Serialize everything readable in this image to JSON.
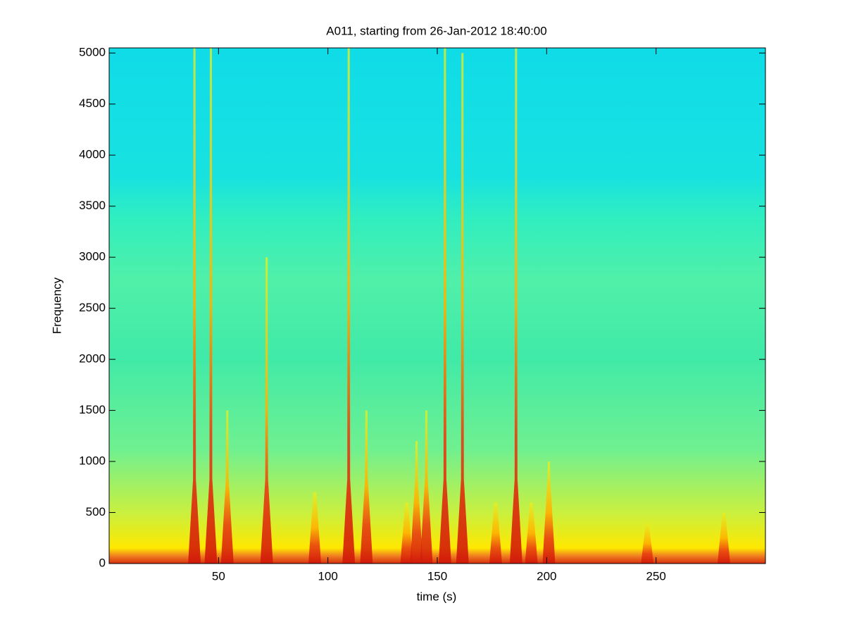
{
  "chart_data": {
    "type": "spectrogram",
    "title": "A011, starting from 26-Jan-2012 18:40:00",
    "x_label": "time (s)",
    "y_label": "Frequency",
    "xlim": [
      0,
      300
    ],
    "ylim": [
      0,
      5050
    ],
    "xticks": [
      50,
      100,
      150,
      200,
      250
    ],
    "yticks": [
      0,
      500,
      1000,
      1500,
      2000,
      2500,
      3000,
      3500,
      4000,
      4500,
      5000
    ],
    "colormap": "jet",
    "x": [
      39,
      46.5,
      54,
      72,
      94,
      109.5,
      117.6,
      136,
      140.5,
      145,
      153.5,
      161.5,
      176.7,
      186,
      193,
      201,
      246,
      281
    ],
    "values": [
      5050,
      5050,
      1500,
      3000,
      700,
      5050,
      1500,
      600,
      1200,
      1500,
      5050,
      5000,
      600,
      5050,
      600,
      1000,
      400,
      500
    ]
  }
}
